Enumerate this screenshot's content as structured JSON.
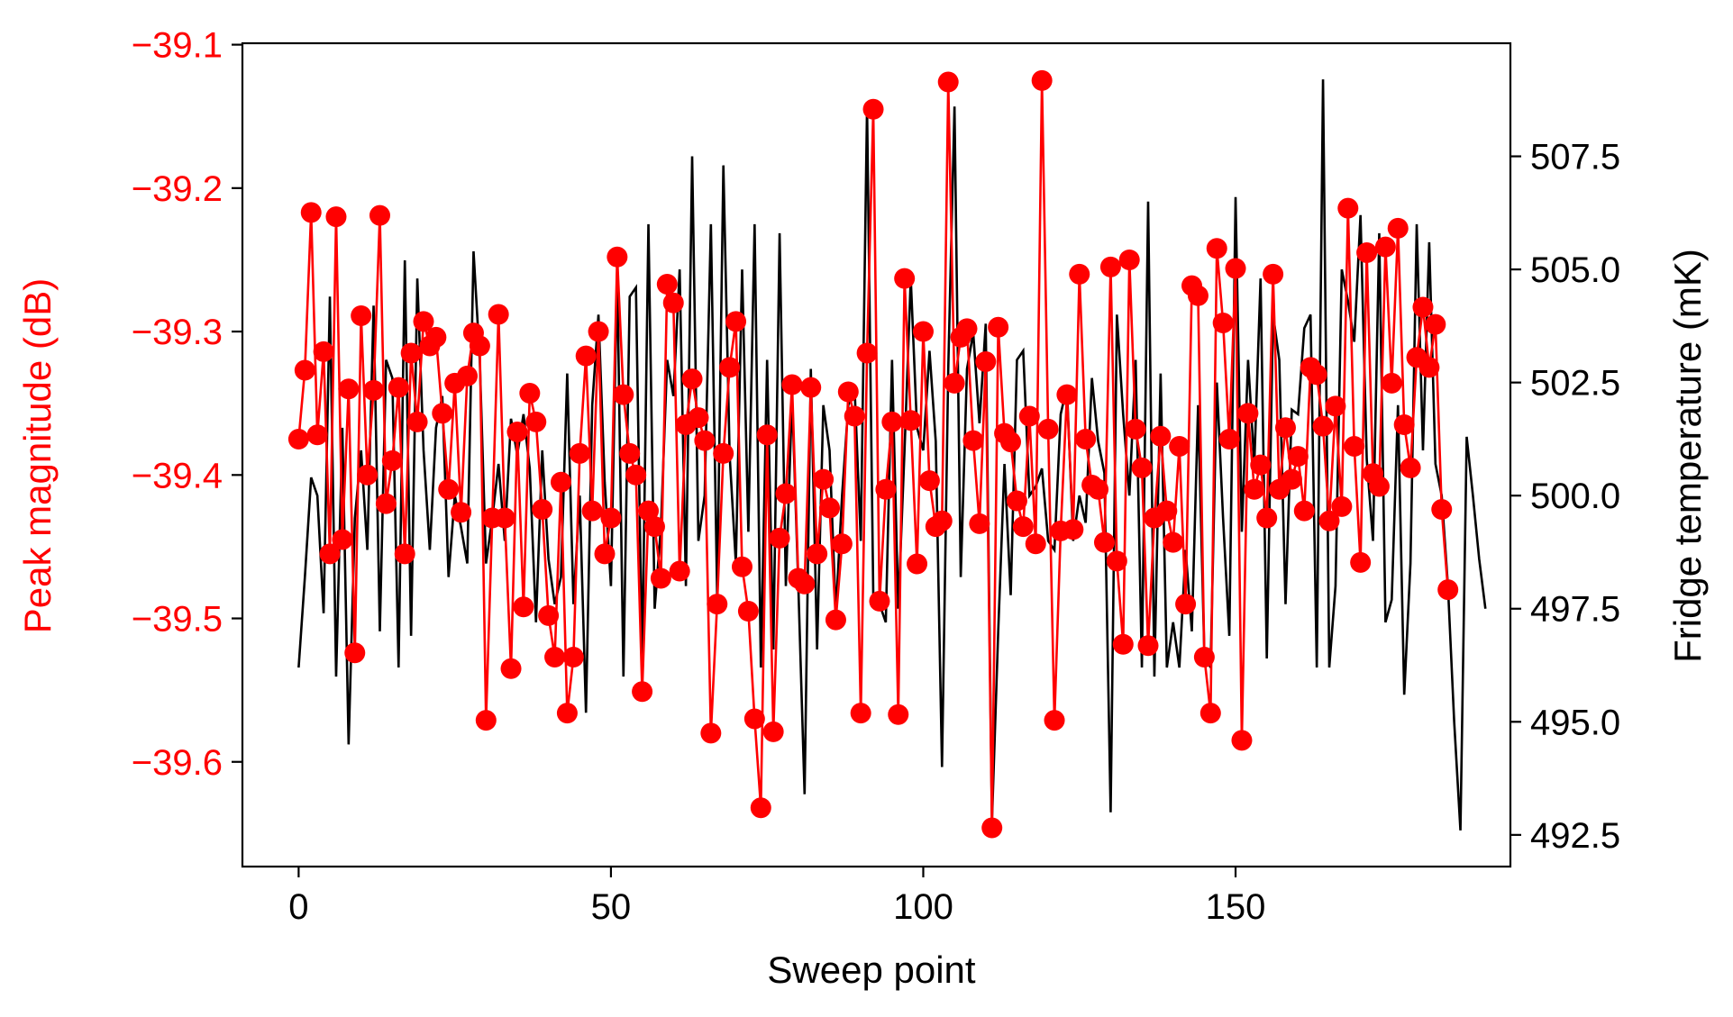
{
  "chart_data": {
    "type": "line",
    "title": "",
    "xlabel": "Sweep point",
    "ylabel_left": "Peak magnitude (dB)",
    "ylabel_right": "Fridge temperature (mK)",
    "xlim": [
      -9,
      194
    ],
    "ylim_left": [
      -39.673,
      -39.099
    ],
    "ylim_right": [
      491.8,
      510.0
    ],
    "x_ticks": [
      0,
      50,
      100,
      150
    ],
    "x_tick_labels": [
      "0",
      "50",
      "100",
      "150"
    ],
    "y_left_ticks": [
      -39.1,
      -39.2,
      -39.3,
      -39.4,
      -39.5,
      -39.6
    ],
    "y_left_tick_labels": [
      "−39.1",
      "−39.2",
      "−39.3",
      "−39.4",
      "−39.5",
      "−39.6"
    ],
    "y_right_ticks": [
      492.5,
      495.0,
      497.5,
      500.0,
      502.5,
      505.0,
      507.5
    ],
    "y_right_tick_labels": [
      "492.5",
      "495.0",
      "497.5",
      "500.0",
      "502.5",
      "505.0",
      "507.5"
    ],
    "grid": false,
    "legend": "none",
    "colors": {
      "left_series": "#ff0000",
      "right_series": "#000000",
      "axes": "#000000"
    },
    "series": [
      {
        "axis": "left",
        "marker": "circle",
        "values": [
          -39.375,
          -39.327,
          -39.217,
          -39.372,
          -39.314,
          -39.455,
          -39.22,
          -39.445,
          -39.34,
          -39.524,
          -39.289,
          -39.4,
          -39.341,
          -39.219,
          -39.42,
          -39.39,
          -39.339,
          -39.455,
          -39.315,
          -39.363,
          -39.293,
          -39.31,
          -39.304,
          -39.357,
          -39.41,
          -39.336,
          -39.426,
          -39.331,
          -39.301,
          -39.31,
          -39.571,
          -39.43,
          -39.288,
          -39.43,
          -39.535,
          -39.37,
          -39.492,
          -39.343,
          -39.363,
          -39.424,
          -39.498,
          -39.527,
          -39.405,
          -39.566,
          -39.527,
          -39.385,
          -39.317,
          -39.425,
          -39.3,
          -39.455,
          -39.43,
          -39.248,
          -39.344,
          -39.385,
          -39.4,
          -39.551,
          -39.425,
          -39.436,
          -39.472,
          -39.267,
          -39.28,
          -39.467,
          -39.365,
          -39.333,
          -39.36,
          -39.376,
          -39.58,
          -39.49,
          -39.385,
          -39.325,
          -39.293,
          -39.464,
          -39.495,
          -39.57,
          -39.632,
          -39.372,
          -39.579,
          -39.444,
          -39.413,
          -39.337,
          -39.472,
          -39.476,
          -39.339,
          -39.455,
          -39.403,
          -39.423,
          -39.501,
          -39.448,
          -39.342,
          -39.359,
          -39.566,
          -39.315,
          -39.145,
          -39.488,
          -39.41,
          -39.363,
          -39.567,
          -39.263,
          -39.362,
          -39.462,
          -39.3,
          -39.404,
          -39.436,
          -39.432,
          -39.126,
          -39.336,
          -39.304,
          -39.298,
          -39.376,
          -39.434,
          -39.321,
          -39.646,
          -39.297,
          -39.371,
          -39.377,
          -39.418,
          -39.436,
          -39.359,
          -39.448,
          -39.125,
          -39.368,
          -39.571,
          -39.439,
          -39.344,
          -39.438,
          -39.26,
          -39.375,
          -39.407,
          -39.41,
          -39.447,
          -39.255,
          -39.46,
          -39.518,
          -39.25,
          -39.368,
          -39.395,
          -39.519,
          -39.43,
          -39.373,
          -39.425,
          -39.447,
          -39.38,
          -39.49,
          -39.268,
          -39.275,
          -39.527,
          -39.566,
          -39.242,
          -39.294,
          -39.375,
          -39.256,
          -39.585,
          -39.357,
          -39.41,
          -39.393,
          -39.43,
          -39.26,
          -39.41,
          -39.367,
          -39.403,
          -39.387,
          -39.425,
          -39.325,
          -39.33,
          -39.366,
          -39.432,
          -39.352,
          -39.422,
          -39.214,
          -39.38,
          -39.461,
          -39.245,
          -39.399,
          -39.408,
          -39.241,
          -39.336,
          -39.228,
          -39.365,
          -39.395,
          -39.318,
          -39.283,
          -39.325,
          -39.295,
          -39.424,
          -39.48
        ]
      },
      {
        "axis": "right",
        "marker": "none",
        "values": [
          496.2,
          498.2,
          500.4,
          500.0,
          497.4,
          504.4,
          496.0,
          501.5,
          494.5,
          499.5,
          501.0,
          498.8,
          504.2,
          497.0,
          503.0,
          502.6,
          496.2,
          505.2,
          496.9,
          504.8,
          501.0,
          498.8,
          501.5,
          502.2,
          498.2,
          500.0,
          499.3,
          498.5,
          505.4,
          503.0,
          498.5,
          499.5,
          500.7,
          499.0,
          501.7,
          500.9,
          501.8,
          500.6,
          497.2,
          501.0,
          498.6,
          497.6,
          498.2,
          502.7,
          497.6,
          500.0,
          495.2,
          502.0,
          504.0,
          500.3,
          498.0,
          505.0,
          496.0,
          504.4,
          504.6,
          496.3,
          506.0,
          497.5,
          499.3,
          503.0,
          502.2,
          505.0,
          498.0,
          507.5,
          499.0,
          500.0,
          506.0,
          497.8,
          507.3,
          500.9,
          498.5,
          505.0,
          499.2,
          506.0,
          496.2,
          503.0,
          496.6,
          505.8,
          498.0,
          502.2,
          498.0,
          493.4,
          502.8,
          496.6,
          502.0,
          501.0,
          497.4,
          500.0,
          502.0,
          502.4,
          499.0,
          508.6,
          497.8,
          497.6,
          497.2,
          503.0,
          497.5,
          501.0,
          504.8,
          501.5,
          501.0,
          503.2,
          501.2,
          494.0,
          502.8,
          508.6,
          498.2,
          502.8,
          503.6,
          501.6,
          503.8,
          492.8,
          497.0,
          500.7,
          497.8,
          503.0,
          503.2,
          500.0,
          500.2,
          500.6,
          499.0,
          498.8,
          501.8,
          502.4,
          499.0,
          500.0,
          499.4,
          502.6,
          501.2,
          500.5,
          493.0,
          504.0,
          501.8,
          500.0,
          503.0,
          496.2,
          506.5,
          496.0,
          502.7,
          496.2,
          497.2,
          496.2,
          498.8,
          497.0,
          502.0,
          496.5,
          496.2,
          502.5,
          499.5,
          496.9,
          506.6,
          499.2,
          503.0,
          500.7,
          504.8,
          496.4,
          504.0,
          503.0,
          497.6,
          501.9,
          501.8,
          503.7,
          504.0,
          496.2,
          509.2,
          496.2,
          498.0,
          505.0,
          504.3,
          503.4,
          506.2,
          500.8,
          499.0,
          505.8,
          497.2,
          497.7,
          502.0,
          495.6,
          498.5,
          506.0,
          501.0,
          505.6,
          500.7,
          500.0,
          498.0,
          495.0,
          492.6,
          501.3,
          500.0,
          498.6,
          497.5
        ]
      }
    ]
  }
}
